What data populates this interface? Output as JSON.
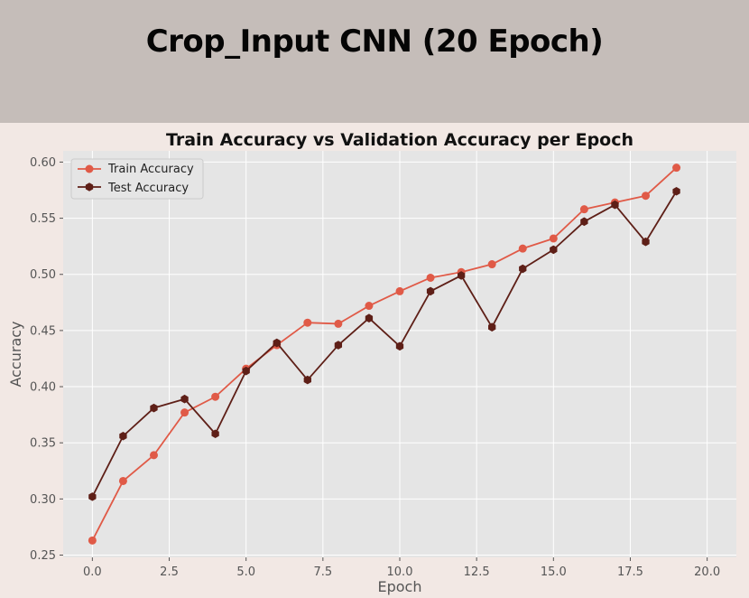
{
  "banner": {
    "title": "Crop_Input CNN (20 Epoch)",
    "background": "#c5bdb9"
  },
  "chart_data": {
    "type": "line",
    "title": "Train Accuracy vs Validation Accuracy per Epoch",
    "xlabel": "Epoch",
    "ylabel": "Accuracy",
    "xlim": [
      -0.95,
      20.95
    ],
    "ylim": [
      0.248,
      0.61
    ],
    "xticks": [
      0.0,
      2.5,
      5.0,
      7.5,
      10.0,
      12.5,
      15.0,
      17.5,
      20.0
    ],
    "xtick_labels": [
      "0.0",
      "2.5",
      "5.0",
      "7.5",
      "10.0",
      "12.5",
      "15.0",
      "17.5",
      "20.0"
    ],
    "yticks": [
      0.25,
      0.3,
      0.35,
      0.4,
      0.45,
      0.5,
      0.55,
      0.6
    ],
    "ytick_labels": [
      "0.25",
      "0.30",
      "0.35",
      "0.40",
      "0.45",
      "0.50",
      "0.55",
      "0.60"
    ],
    "grid": true,
    "legend_position": "upper-left",
    "x": [
      0,
      1,
      2,
      3,
      4,
      5,
      6,
      7,
      8,
      9,
      10,
      11,
      12,
      13,
      14,
      15,
      16,
      17,
      18,
      19
    ],
    "series": [
      {
        "name": "Train Accuracy",
        "color": "#e05a47",
        "marker": "circle",
        "values": [
          0.263,
          0.316,
          0.339,
          0.377,
          0.391,
          0.416,
          0.437,
          0.457,
          0.456,
          0.472,
          0.485,
          0.497,
          0.502,
          0.509,
          0.523,
          0.532,
          0.558,
          0.564,
          0.57,
          0.595
        ]
      },
      {
        "name": "Test Accuracy",
        "color": "#5e1f17",
        "marker": "hexagon",
        "values": [
          0.302,
          0.356,
          0.381,
          0.389,
          0.358,
          0.414,
          0.439,
          0.406,
          0.437,
          0.461,
          0.436,
          0.485,
          0.499,
          0.453,
          0.505,
          0.522,
          0.547,
          0.562,
          0.529,
          0.574
        ]
      }
    ]
  }
}
